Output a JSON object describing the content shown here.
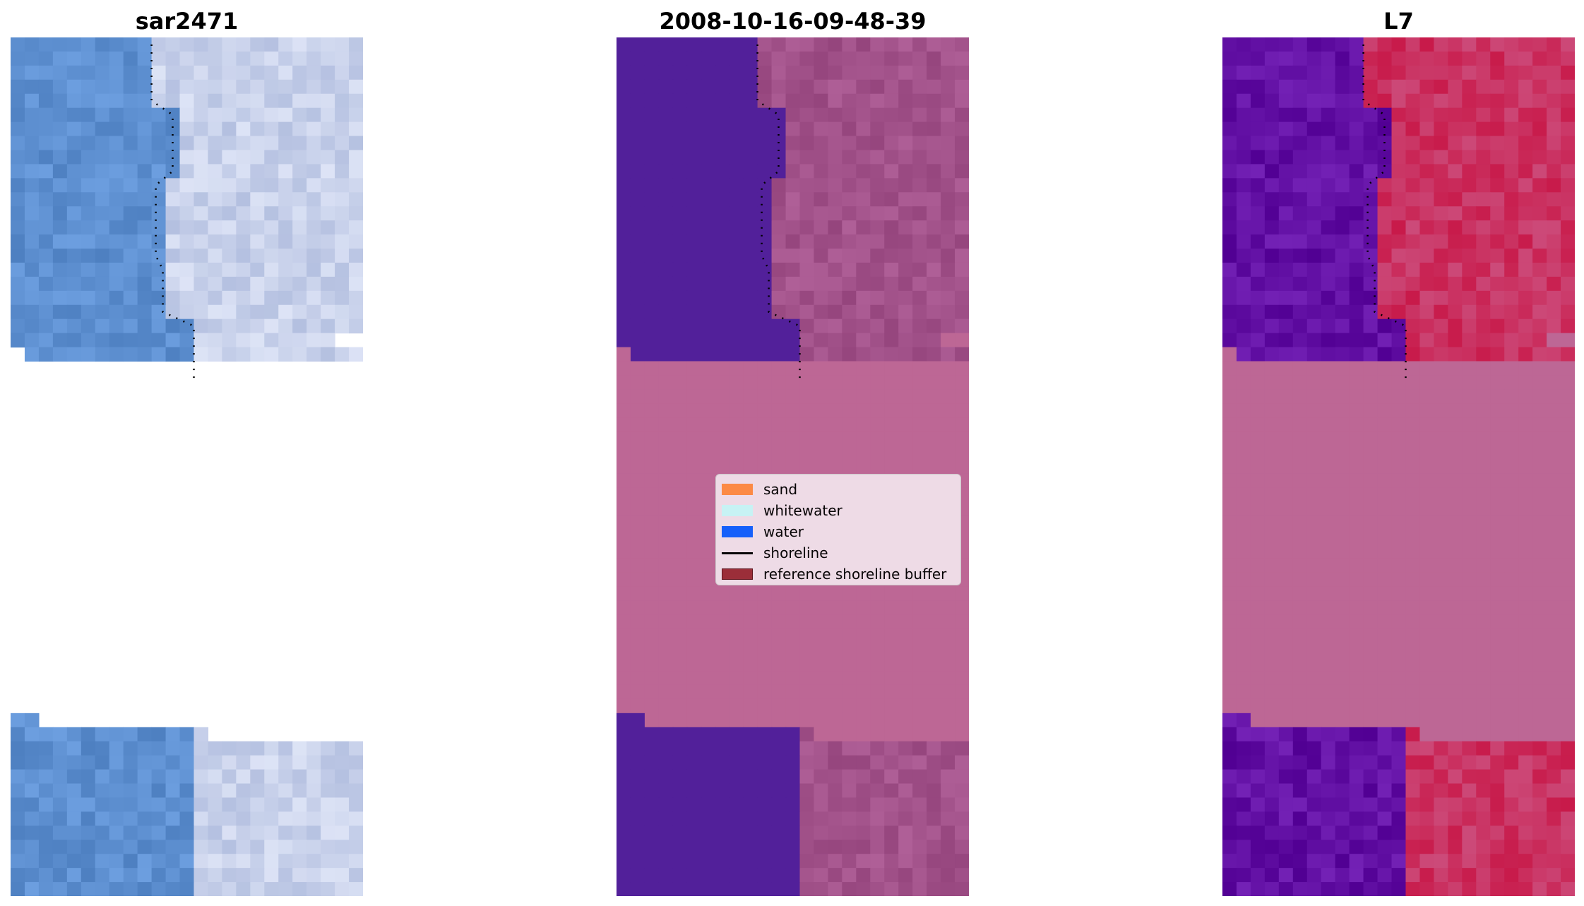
{
  "panels": [
    {
      "title": "sar2471",
      "type": "rgb"
    },
    {
      "title": "2008-10-16-09-48-39",
      "type": "classified"
    },
    {
      "title": "L7",
      "type": "index"
    }
  ],
  "legend": {
    "items": [
      {
        "label": "sand",
        "kind": "patch",
        "color": "#ff8c42"
      },
      {
        "label": "whitewater",
        "kind": "patch",
        "color": "#c8f8f8"
      },
      {
        "label": "water",
        "kind": "patch",
        "color": "#1060ff"
      },
      {
        "label": "shoreline",
        "kind": "line",
        "color": "#000000"
      },
      {
        "label": "reference shoreline buffer",
        "kind": "patch",
        "color": "#9a2c36"
      }
    ]
  },
  "colors": {
    "nodata_fill": "#bd6795",
    "water_class": "#52209a",
    "rgb_water": "#5d8fd0",
    "rgb_land": "#b4c0e0",
    "index_water": "#6210a4",
    "index_land": "#c81a4a",
    "classified_land": "#a2528a"
  }
}
